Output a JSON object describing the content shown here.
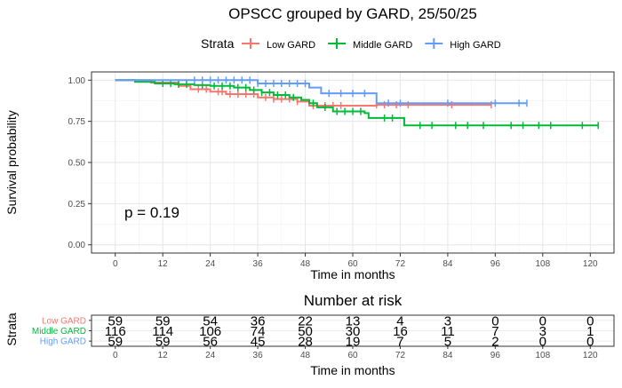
{
  "chart_data": [
    {
      "type": "line",
      "title": "OPSCC grouped by GARD, 25/50/25",
      "xlabel": "Time in months",
      "ylabel": "Survival probability",
      "xlim": [
        -6,
        126
      ],
      "ylim": [
        -0.05,
        1.05
      ],
      "xticks": [
        "0",
        "12",
        "24",
        "36",
        "48",
        "60",
        "72",
        "84",
        "96",
        "108",
        "120"
      ],
      "yticks": [
        "0.00",
        "0.25",
        "0.50",
        "0.75",
        "1.00"
      ],
      "legend_title": "Strata",
      "legend_position": "top",
      "grid": true,
      "annotation": "p = 0.19",
      "series": [
        {
          "name": "Low GARD",
          "color": "#F8766D",
          "steps": [
            [
              0,
              1.0
            ],
            [
              9,
              0.985
            ],
            [
              16,
              0.965
            ],
            [
              19,
              0.945
            ],
            [
              24,
              0.93
            ],
            [
              28,
              0.915
            ],
            [
              36,
              0.895
            ],
            [
              40,
              0.885
            ],
            [
              46,
              0.87
            ],
            [
              49,
              0.845
            ],
            [
              60,
              0.845
            ],
            [
              63,
              0.845
            ],
            [
              66,
              0.85
            ],
            [
              95,
              0.85
            ]
          ],
          "censor": [
            21,
            23,
            26,
            27,
            29,
            31,
            33,
            35,
            38,
            40,
            42,
            44,
            46,
            50,
            53,
            55,
            57,
            66,
            68,
            71,
            74,
            85,
            95
          ]
        },
        {
          "name": "Middle GARD",
          "color": "#00BA38",
          "steps": [
            [
              0,
              1.0
            ],
            [
              5,
              0.99
            ],
            [
              10,
              0.98
            ],
            [
              15,
              0.975
            ],
            [
              20,
              0.97
            ],
            [
              24,
              0.965
            ],
            [
              30,
              0.955
            ],
            [
              34,
              0.94
            ],
            [
              37,
              0.925
            ],
            [
              40,
              0.91
            ],
            [
              44,
              0.895
            ],
            [
              47,
              0.88
            ],
            [
              49,
              0.86
            ],
            [
              51,
              0.835
            ],
            [
              55,
              0.81
            ],
            [
              63,
              0.8
            ],
            [
              64,
              0.77
            ],
            [
              72,
              0.77
            ],
            [
              73,
              0.725
            ],
            [
              122,
              0.725
            ]
          ],
          "censor": [
            12,
            14,
            16,
            18,
            22,
            25,
            27,
            29,
            31,
            33,
            35,
            37,
            39,
            41,
            43,
            45,
            50,
            53,
            56,
            58,
            60,
            62,
            68,
            70,
            77,
            80,
            86,
            89,
            93,
            100,
            103,
            107,
            110,
            118,
            122
          ]
        },
        {
          "name": "High GARD",
          "color": "#619CFF",
          "steps": [
            [
              0,
              1.0
            ],
            [
              29,
              1.0
            ],
            [
              36,
              0.98
            ],
            [
              49,
              0.955
            ],
            [
              52,
              0.92
            ],
            [
              66,
              0.86
            ],
            [
              104,
              0.86
            ]
          ],
          "censor": [
            20,
            22,
            24,
            26,
            28,
            30,
            32,
            34,
            36,
            38,
            40,
            42,
            44,
            46,
            48,
            54,
            57,
            60,
            63,
            69,
            72,
            84,
            96,
            102,
            104
          ]
        }
      ]
    },
    {
      "type": "table",
      "title": "Number at risk",
      "xlabel": "Time in months",
      "ylabel": "Strata",
      "xlim": [
        -6,
        126
      ],
      "columns": [
        "0",
        "12",
        "24",
        "36",
        "48",
        "60",
        "72",
        "84",
        "96",
        "108",
        "120"
      ],
      "rows": [
        {
          "name": "Low GARD",
          "color": "#F8766D",
          "values": [
            "59",
            "59",
            "54",
            "36",
            "22",
            "13",
            "4",
            "3",
            "0",
            "0",
            "0"
          ]
        },
        {
          "name": "Middle GARD",
          "color": "#00BA38",
          "values": [
            "116",
            "114",
            "106",
            "74",
            "50",
            "30",
            "16",
            "11",
            "7",
            "3",
            "1"
          ]
        },
        {
          "name": "High GARD",
          "color": "#619CFF",
          "values": [
            "59",
            "59",
            "56",
            "45",
            "28",
            "19",
            "7",
            "5",
            "2",
            "0",
            "0"
          ]
        }
      ]
    }
  ]
}
